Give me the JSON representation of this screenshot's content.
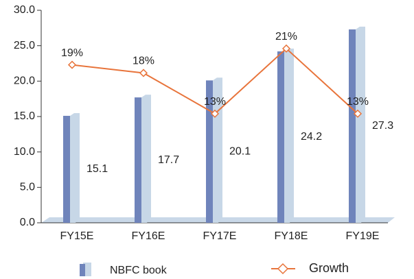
{
  "chart_data": {
    "type": "bar",
    "categories": [
      "FY15E",
      "FY16E",
      "FY17E",
      "FY18E",
      "FY19E"
    ],
    "series": [
      {
        "name": "NBFC book",
        "type": "bar",
        "color": "#6f84bb",
        "values": [
          15.1,
          17.7,
          20.1,
          24.2,
          27.3
        ]
      },
      {
        "name": "Growth",
        "type": "line",
        "axis": "y2",
        "color": "#e8743b",
        "values": [
          19,
          18,
          13,
          21,
          13
        ],
        "value_labels": [
          "19%",
          "18%",
          "13%",
          "21%",
          "13%"
        ]
      }
    ],
    "ylim": [
      0,
      30
    ],
    "yticks": [
      {
        "value": 0,
        "label": "0.0"
      },
      {
        "value": 5,
        "label": "5.0"
      },
      {
        "value": 10,
        "label": "10.0"
      },
      {
        "value": 15,
        "label": "15.0"
      },
      {
        "value": 20,
        "label": "20.0"
      },
      {
        "value": 25,
        "label": "25.0"
      },
      {
        "value": 30,
        "label": "30.0"
      }
    ],
    "y2lim": [
      -0.4,
      25.7
    ],
    "legend": "bottom"
  }
}
